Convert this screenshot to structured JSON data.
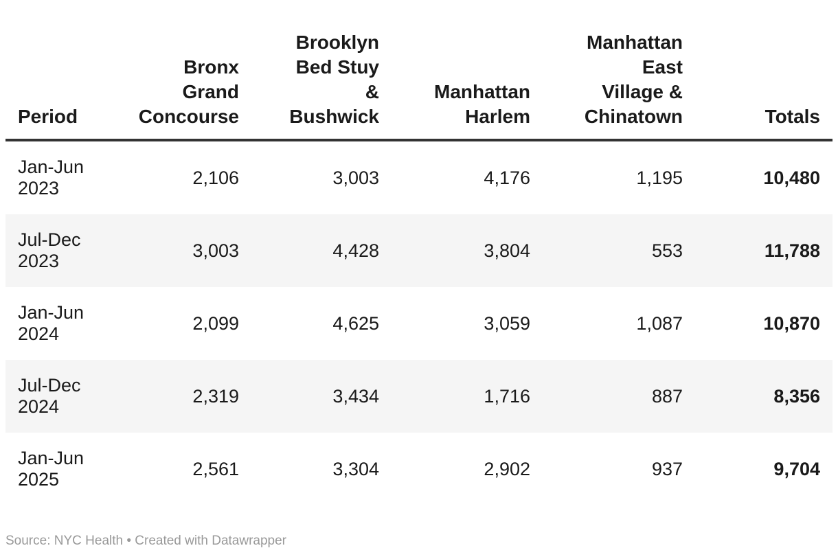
{
  "colors": {
    "text": "#1a1a1a",
    "header_border": "#333333",
    "row_stripe": "#f5f5f5",
    "footer_text": "#999999",
    "background": "#ffffff"
  },
  "table": {
    "columns": [
      "Period",
      "Bronx\nGrand\nConcourse",
      "Brooklyn\nBed Stuy\n&\nBushwick",
      "Manhattan\nHarlem",
      "Manhattan\nEast\nVillage &\nChinatown",
      "Totals"
    ],
    "rows": [
      [
        "Jan-Jun\n2023",
        "2,106",
        "3,003",
        "4,176",
        "1,195",
        "10,480"
      ],
      [
        "Jul-Dec\n2023",
        "3,003",
        "4,428",
        "3,804",
        "553",
        "11,788"
      ],
      [
        "Jan-Jun\n2024",
        "2,099",
        "4,625",
        "3,059",
        "1,087",
        "10,870"
      ],
      [
        "Jul-Dec\n2024",
        "2,319",
        "3,434",
        "1,716",
        "887",
        "8,356"
      ],
      [
        "Jan-Jun\n2025",
        "2,561",
        "3,304",
        "2,902",
        "937",
        "9,704"
      ]
    ]
  },
  "footer": {
    "text": "Source: NYC Health • Created with Datawrapper"
  },
  "chart_data": {
    "type": "table",
    "columns": [
      "Period",
      "Bronx Grand Concourse",
      "Brooklyn Bed Stuy & Bushwick",
      "Manhattan Harlem",
      "Manhattan East Village & Chinatown",
      "Totals"
    ],
    "rows": [
      [
        "Jan-Jun 2023",
        2106,
        3003,
        4176,
        1195,
        10480
      ],
      [
        "Jul-Dec 2023",
        3003,
        4428,
        3804,
        553,
        11788
      ],
      [
        "Jan-Jun 2024",
        2099,
        4625,
        3059,
        1087,
        10870
      ],
      [
        "Jul-Dec 2024",
        2319,
        3434,
        1716,
        887,
        8356
      ],
      [
        "Jan-Jun 2025",
        2561,
        3304,
        2902,
        937,
        9704
      ]
    ],
    "source": "NYC Health",
    "created_with": "Datawrapper",
    "layout_hints": {
      "striped_rows": [
        2,
        4
      ],
      "totals_column_bold": true,
      "numeric_alignment": "right"
    }
  }
}
